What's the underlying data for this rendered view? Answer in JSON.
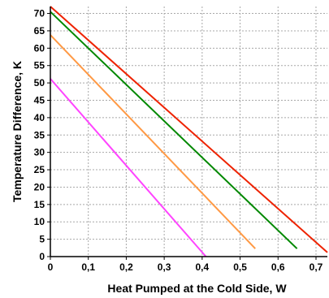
{
  "chart_data": {
    "type": "line",
    "title": "",
    "xlabel": "Heat Pumped at the Cold Side, W",
    "ylabel": "Temperature Difference, K",
    "xlim": [
      0,
      0.73
    ],
    "ylim": [
      0,
      72
    ],
    "xticks": [
      0,
      0.1,
      0.2,
      0.3,
      0.4,
      0.5,
      0.6,
      0.7
    ],
    "xtick_labels": [
      "0",
      "0,1",
      "0,2",
      "0,3",
      "0,4",
      "0,5",
      "0,6",
      "0,7"
    ],
    "yticks": [
      0,
      5,
      10,
      15,
      20,
      25,
      30,
      35,
      40,
      45,
      50,
      55,
      60,
      65,
      70
    ],
    "ytick_labels": [
      "0",
      "5",
      "10",
      "15",
      "20",
      "25",
      "30",
      "35",
      "40",
      "45",
      "50",
      "55",
      "60",
      "65",
      "70"
    ],
    "grid": true,
    "legend": "none",
    "series": [
      {
        "color": "#ee2200",
        "x": [
          0,
          0.73
        ],
        "y": [
          72,
          1.2
        ]
      },
      {
        "color": "#008800",
        "x": [
          0,
          0.65
        ],
        "y": [
          70.5,
          2.3
        ]
      },
      {
        "color": "#ff9944",
        "x": [
          0,
          0.54
        ],
        "y": [
          63.8,
          2.3
        ]
      },
      {
        "color": "#ff44ff",
        "x": [
          0,
          0.41
        ],
        "y": [
          51.2,
          0
        ]
      }
    ]
  },
  "colors": {
    "grid": "#a8a8a8",
    "axis": "#000000",
    "background": "#ffffff"
  }
}
